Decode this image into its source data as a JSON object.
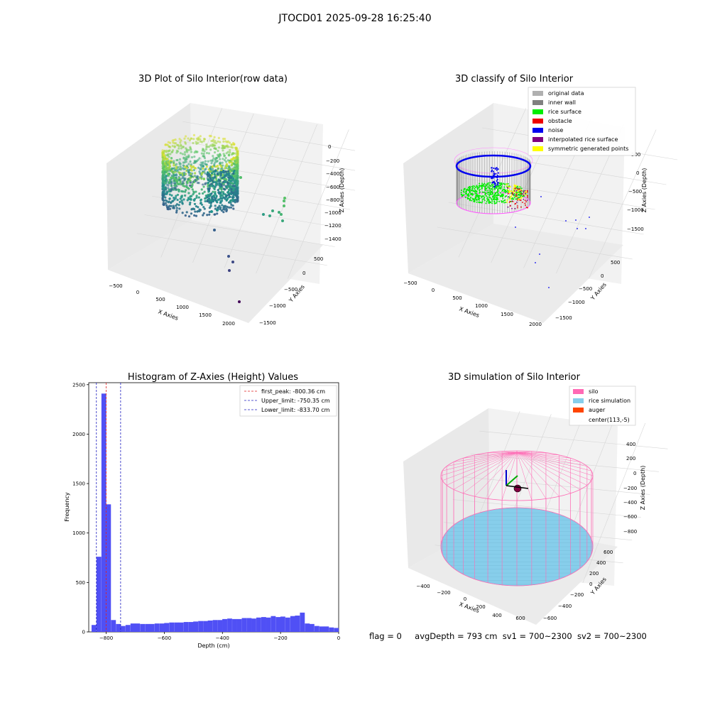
{
  "suptitle": "JTOCD01 2025-09-28 16:25:40",
  "footer": {
    "flag": "flag = 0",
    "avg_depth": "avgDepth = 793 cm",
    "sv1": "sv1 = 700~2300",
    "sv2": "sv2 = 700~2300"
  },
  "colors": {
    "hist_bar": "#5050f5",
    "first_peak": "#e02020",
    "limits": "#2020c0",
    "silo": "#ff69b4",
    "rice_sim": "#87ceeb",
    "auger": "#ff4500",
    "original": "#b0b0b0",
    "inner_wall": "#808080",
    "rice_surface": "#00ee00",
    "obstacle": "#ee0000",
    "noise": "#0000ee",
    "interp": "#800080",
    "symmetric": "#ffff00"
  },
  "chart_data": [
    {
      "type": "scatter",
      "title": "3D Plot of Silo Interior(row data)",
      "xlabel": "X Axies",
      "ylabel": "Y Axies",
      "zlabel": "Z Axies (Depth)",
      "x_ticks": [
        "−500",
        "0",
        "500",
        "1000",
        "1500",
        "2000"
      ],
      "y_ticks": [
        "−1500",
        "−1000",
        "−500",
        "0",
        "500"
      ],
      "z_ticks": [
        "0",
        "−200",
        "−400",
        "−600",
        "−800",
        "−1000",
        "−1200",
        "−1400"
      ]
    },
    {
      "type": "scatter",
      "title": "3D classify of Silo Interior",
      "xlabel": "X Axies",
      "ylabel": "Y Axies",
      "zlabel": "Z Axies (Depth)",
      "x_ticks": [
        "−500",
        "0",
        "500",
        "1000",
        "1500",
        "2000"
      ],
      "y_ticks": [
        "−1500",
        "−1000",
        "−500",
        "0",
        "500"
      ],
      "z_ticks": [
        "500",
        "0",
        "−500",
        "−1000",
        "−1500"
      ],
      "legend": [
        "original data",
        "inner wall",
        "rice surface",
        "obstacle",
        "noise",
        "interpolated rice surface",
        "symmetric generated points"
      ],
      "legend_position": "top-right"
    },
    {
      "type": "bar",
      "title": "Histogram of Z-Axies (Height) Values",
      "xlabel": "Depth (cm)",
      "ylabel": "Frequency",
      "xlim": [
        -860,
        0
      ],
      "ylim": [
        0,
        2520
      ],
      "x_ticks": [
        -800,
        -600,
        -400,
        -200,
        0
      ],
      "y_ticks": [
        0,
        500,
        1000,
        1500,
        2000,
        2500
      ],
      "bin_width": 16.7,
      "bins": [
        [
          -842,
          70
        ],
        [
          -825,
          760
        ],
        [
          -808,
          2410
        ],
        [
          -792,
          1290
        ],
        [
          -775,
          120
        ],
        [
          -758,
          80
        ],
        [
          -742,
          60
        ],
        [
          -725,
          70
        ],
        [
          -708,
          85
        ],
        [
          -692,
          85
        ],
        [
          -675,
          80
        ],
        [
          -658,
          80
        ],
        [
          -642,
          80
        ],
        [
          -625,
          85
        ],
        [
          -608,
          85
        ],
        [
          -592,
          90
        ],
        [
          -575,
          95
        ],
        [
          -558,
          95
        ],
        [
          -542,
          95
        ],
        [
          -525,
          100
        ],
        [
          -508,
          100
        ],
        [
          -492,
          105
        ],
        [
          -475,
          110
        ],
        [
          -458,
          110
        ],
        [
          -442,
          115
        ],
        [
          -425,
          120
        ],
        [
          -408,
          120
        ],
        [
          -392,
          130
        ],
        [
          -375,
          135
        ],
        [
          -358,
          130
        ],
        [
          -342,
          130
        ],
        [
          -325,
          140
        ],
        [
          -308,
          140
        ],
        [
          -292,
          135
        ],
        [
          -275,
          145
        ],
        [
          -258,
          150
        ],
        [
          -242,
          145
        ],
        [
          -225,
          160
        ],
        [
          -208,
          150
        ],
        [
          -192,
          155
        ],
        [
          -175,
          145
        ],
        [
          -158,
          160
        ],
        [
          -142,
          165
        ],
        [
          -125,
          195
        ],
        [
          -108,
          85
        ],
        [
          -92,
          80
        ],
        [
          -75,
          60
        ],
        [
          -58,
          55
        ],
        [
          -42,
          55
        ],
        [
          -25,
          45
        ],
        [
          -8,
          40
        ]
      ],
      "lines": [
        {
          "label": "first_peak: -800.36 cm",
          "value": -800.36,
          "style": "red-dashed"
        },
        {
          "label": "Upper_limit: -750.35 cm",
          "value": -750.35,
          "style": "blue-dashed"
        },
        {
          "label": "Lower_limit: -833.70 cm",
          "value": -833.7,
          "style": "blue-dashed"
        }
      ],
      "legend_position": "top-right"
    },
    {
      "type": "scatter",
      "title": "3D simulation of Silo Interior",
      "xlabel": "X Axies",
      "ylabel": "Y Axies",
      "zlabel": "Z Axies (Depth)",
      "x_ticks": [
        "−400",
        "−200",
        "0",
        "200",
        "400",
        "600"
      ],
      "y_ticks": [
        "−600",
        "−400",
        "−200",
        "0",
        "200",
        "400",
        "600"
      ],
      "z_ticks": [
        "400",
        "200",
        "0",
        "−200",
        "−400",
        "−600",
        "−800"
      ],
      "legend": [
        "silo",
        "rice simulation",
        "auger",
        "center(113,-5)"
      ],
      "legend_position": "top-right"
    }
  ]
}
